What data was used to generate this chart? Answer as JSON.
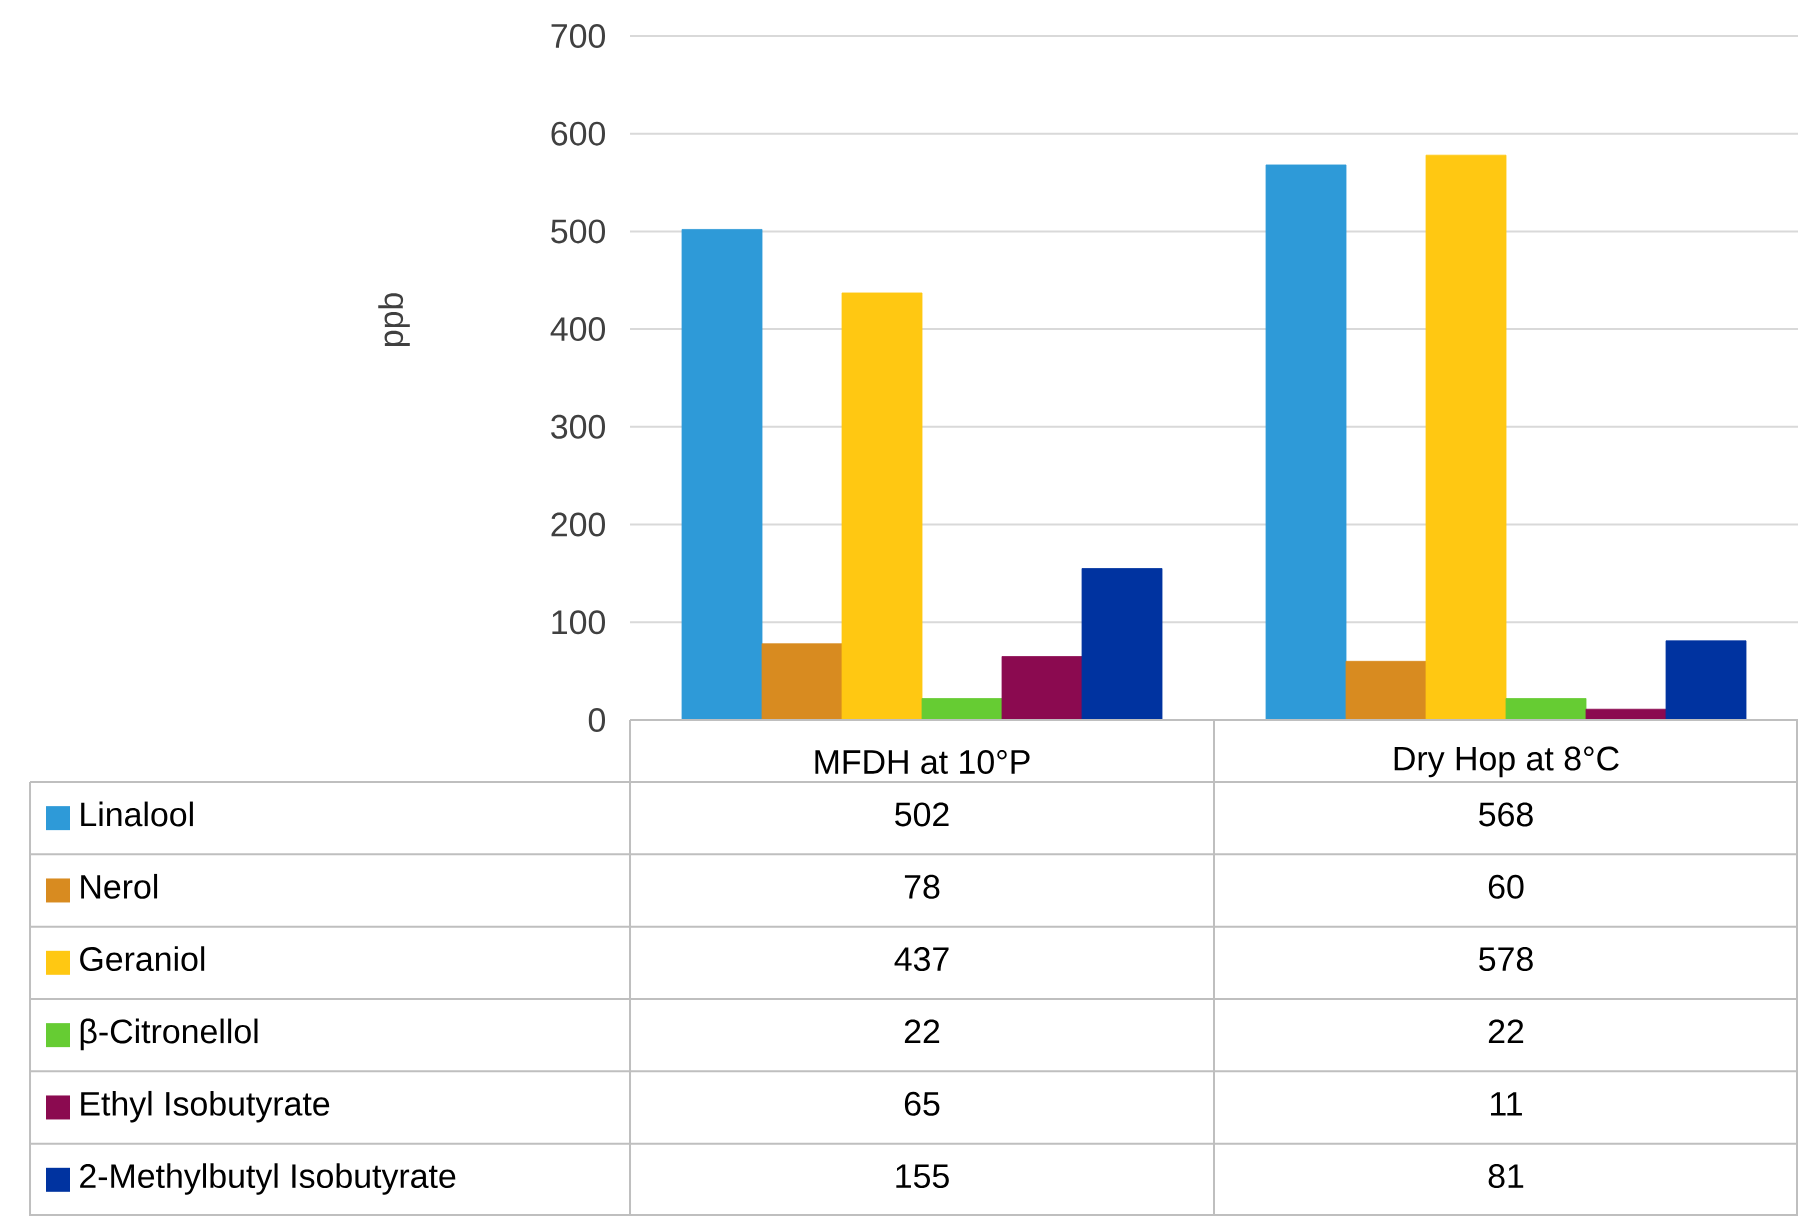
{
  "chart_data": {
    "type": "bar",
    "ylabel": "ppb",
    "categories": [
      "MFDH at 10°P",
      "Dry Hop at 8°C"
    ],
    "series": [
      {
        "name": "Linalool",
        "color": "#2e9ad8",
        "values": [
          502,
          568
        ]
      },
      {
        "name": "Nerol",
        "color": "#d88b20",
        "values": [
          78,
          60
        ]
      },
      {
        "name": "Geraniol",
        "color": "#ffc812",
        "values": [
          437,
          578
        ]
      },
      {
        "name": "β-Citronellol",
        "color": "#66cc33",
        "values": [
          22,
          22
        ]
      },
      {
        "name": "Ethyl Isobutyrate",
        "color": "#8b0a50",
        "values": [
          65,
          11
        ]
      },
      {
        "name": "2-Methylbutyl Isobutyrate",
        "color": "#0033a0",
        "values": [
          155,
          81
        ]
      }
    ],
    "ylim": [
      0,
      700
    ],
    "yticks": [
      0,
      100,
      200,
      300,
      400,
      500,
      600,
      700
    ],
    "grid": "y",
    "legend": "bottom",
    "data_labels": true
  }
}
